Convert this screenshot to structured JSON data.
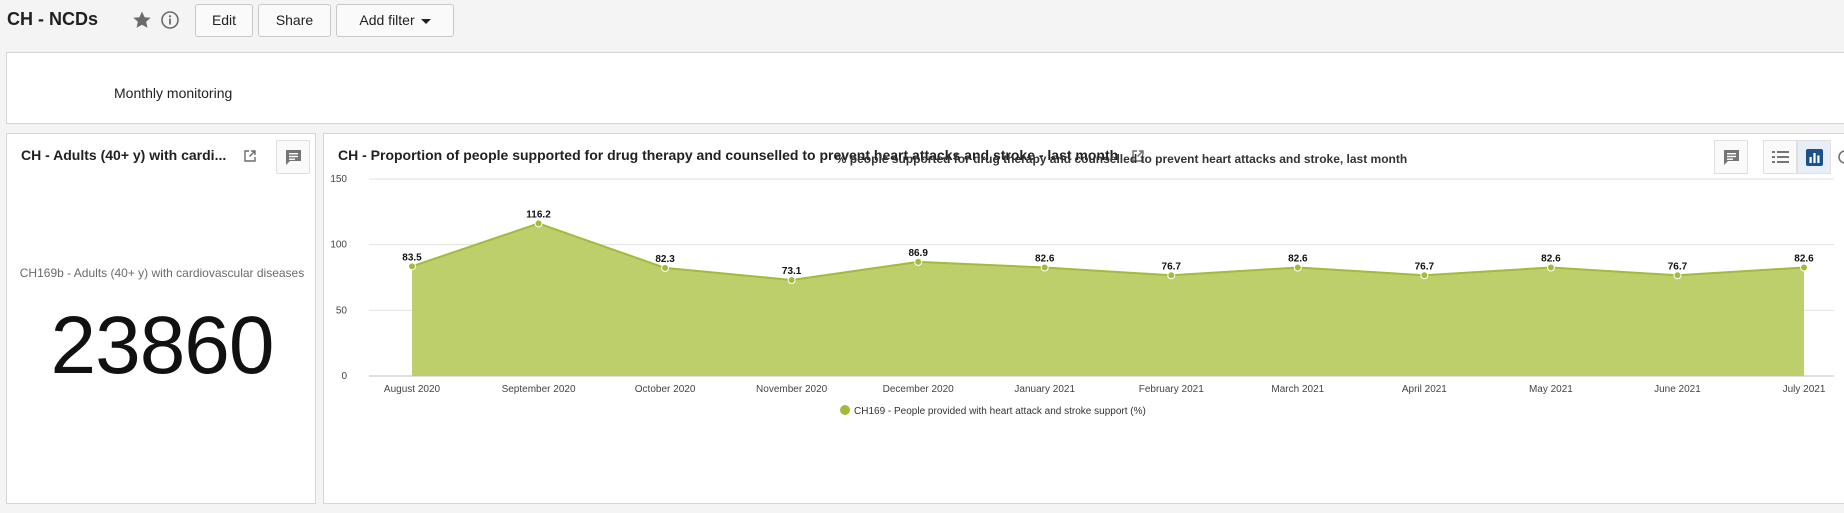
{
  "dashboard": {
    "title": "CH - NCDs",
    "edit_label": "Edit",
    "share_label": "Share",
    "add_filter_label": "Add filter"
  },
  "text_card": {
    "text": "Monthly monitoring"
  },
  "kpi_card": {
    "title": "CH - Adults (40+ y) with cardi...",
    "label": "CH169b - Adults (40+ y) with cardiovascular diseases",
    "value": "23860"
  },
  "chart_card": {
    "title": "CH - Proportion of people supported for drug therapy and counselled to prevent heart attacks and stroke - last month"
  },
  "chart_data": {
    "type": "area",
    "title": "% people supported for drug therapy and counselled to prevent heart attacks and stroke, last month",
    "categories": [
      "August 2020",
      "September 2020",
      "October 2020",
      "November 2020",
      "December 2020",
      "January 2021",
      "February 2021",
      "March 2021",
      "April 2021",
      "May 2021",
      "June 2021",
      "July 2021"
    ],
    "series": [
      {
        "name": "CH169 - People provided with heart attack and stroke support (%)",
        "values": [
          83.5,
          116.2,
          82.3,
          73.1,
          86.9,
          82.6,
          76.7,
          82.6,
          76.7,
          82.6,
          76.7,
          82.6
        ]
      }
    ],
    "yticks": [
      0,
      50,
      100,
      150
    ],
    "ylim": [
      0,
      150
    ],
    "grid": true,
    "legend_position": "bottom",
    "colors": {
      "fill": "#bccf6b",
      "line": "#a3ba3a"
    }
  }
}
